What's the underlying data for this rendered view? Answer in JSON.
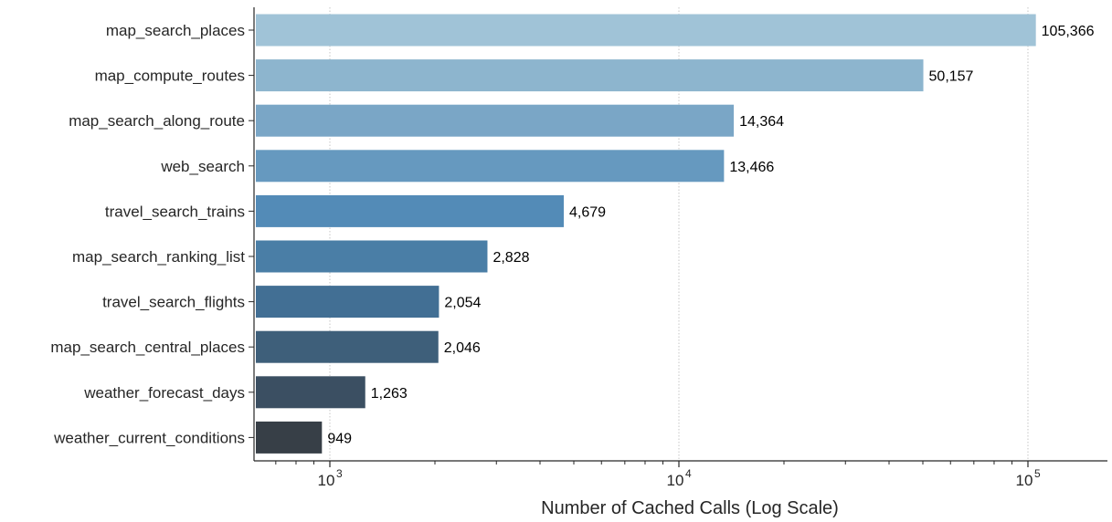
{
  "chart_data": {
    "type": "bar",
    "orientation": "horizontal",
    "title": "",
    "xlabel": "Number of Cached Calls (Log Scale)",
    "ylabel": "",
    "x_scale": "log",
    "xlim": [
      600,
      170000
    ],
    "grid": "vertical dotted at decades",
    "categories": [
      "map_search_places",
      "map_compute_routes",
      "map_search_along_route",
      "web_search",
      "travel_search_trains",
      "map_search_ranking_list",
      "travel_search_flights",
      "map_search_central_places",
      "weather_forecast_days",
      "weather_current_conditions"
    ],
    "values": [
      105366,
      50157,
      14364,
      13466,
      4679,
      2828,
      2054,
      2046,
      1263,
      949
    ],
    "value_labels": [
      "105,366",
      "50,157",
      "14,364",
      "13,466",
      "4,679",
      "2,828",
      "2,054",
      "2,046",
      "1,263",
      "949"
    ],
    "x_major_ticks": [
      {
        "value": 1000,
        "base": "10",
        "exp": "3"
      },
      {
        "value": 10000,
        "base": "10",
        "exp": "4"
      },
      {
        "value": 100000,
        "base": "10",
        "exp": "5"
      }
    ],
    "bar_colors": [
      "#a0c3d7",
      "#8db5ce",
      "#7aa6c6",
      "#6699bf",
      "#538bb7",
      "#4a7ea6",
      "#426f94",
      "#3e5f7a",
      "#3b4f62",
      "#373f47"
    ]
  }
}
